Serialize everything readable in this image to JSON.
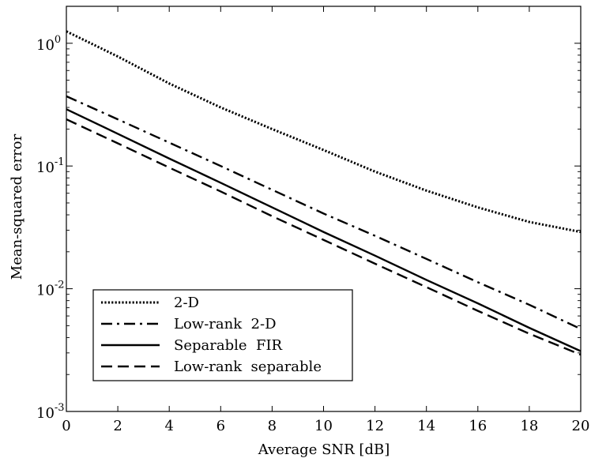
{
  "chart_data": {
    "type": "line",
    "xlabel": "Average  SNR  [dB]",
    "ylabel": "Mean-squared  error",
    "xlim": [
      0,
      20
    ],
    "ylim": [
      0.001,
      2
    ],
    "y_scale": "log",
    "grid": false,
    "legend_position": "bottom-left",
    "x_ticks": [
      0,
      2,
      4,
      6,
      8,
      10,
      12,
      14,
      16,
      18,
      20
    ],
    "x_tick_labels": [
      "0",
      "2",
      "4",
      "6",
      "8",
      "10",
      "12",
      "14",
      "16",
      "18",
      "20"
    ],
    "y_ticks": [
      0.001,
      0.01,
      0.1,
      1
    ],
    "y_tick_labels": [
      {
        "base": "10",
        "exp": "-3"
      },
      {
        "base": "10",
        "exp": "-2"
      },
      {
        "base": "10",
        "exp": "-1"
      },
      {
        "base": "10",
        "exp": "0"
      }
    ],
    "series": [
      {
        "name": "2-D",
        "style": "dotted",
        "x": [
          0,
          2,
          4,
          6,
          8,
          10,
          12,
          14,
          16,
          18,
          20
        ],
        "y": [
          1.25,
          0.78,
          0.47,
          0.3,
          0.2,
          0.135,
          0.09,
          0.063,
          0.046,
          0.035,
          0.029
        ]
      },
      {
        "name": "Low-rank  2-D",
        "style": "dashdot",
        "x": [
          0,
          2,
          4,
          6,
          8,
          10,
          12,
          14,
          16,
          18,
          20
        ],
        "y": [
          0.37,
          0.24,
          0.155,
          0.1,
          0.064,
          0.041,
          0.027,
          0.0175,
          0.0113,
          0.0074,
          0.0047
        ]
      },
      {
        "name": "Separable  FIR",
        "style": "solid",
        "x": [
          0,
          2,
          4,
          6,
          8,
          10,
          12,
          14,
          16,
          18,
          20
        ],
        "y": [
          0.29,
          0.183,
          0.115,
          0.073,
          0.046,
          0.029,
          0.0186,
          0.0118,
          0.0076,
          0.0048,
          0.0031
        ]
      },
      {
        "name": "Low-rank  separable",
        "style": "dashed",
        "x": [
          0,
          2,
          4,
          6,
          8,
          10,
          12,
          14,
          16,
          18,
          20
        ],
        "y": [
          0.24,
          0.153,
          0.097,
          0.062,
          0.039,
          0.025,
          0.016,
          0.0103,
          0.0066,
          0.0043,
          0.0029
        ]
      }
    ]
  }
}
